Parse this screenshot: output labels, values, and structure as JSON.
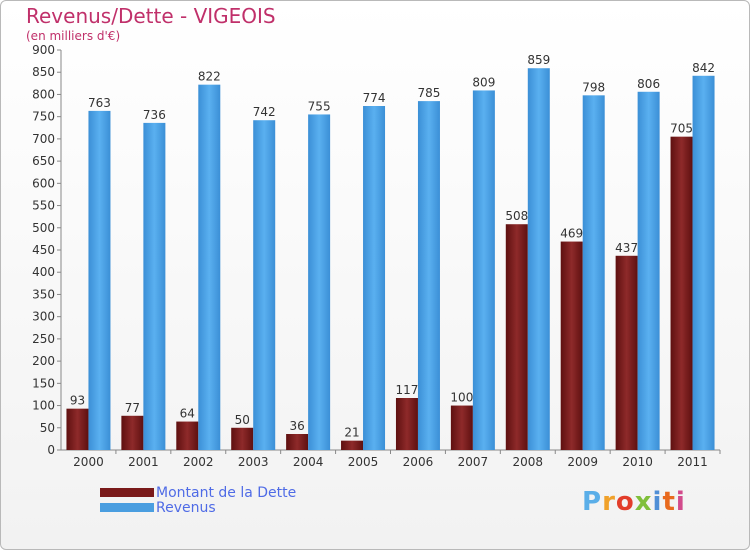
{
  "title": "Revenus/Dette - VIGEOIS",
  "subtitle": "(en milliers d'€)",
  "logo": {
    "text": "Proxiti",
    "letter_colors": [
      "#5aaee8",
      "#f0a12a",
      "#e23d2a",
      "#7fbf3a",
      "#4f8fd6",
      "#e86a1e",
      "#d24b8c"
    ]
  },
  "chart_data": {
    "type": "bar",
    "categories": [
      "2000",
      "2001",
      "2002",
      "2003",
      "2004",
      "2005",
      "2006",
      "2007",
      "2008",
      "2009",
      "2010",
      "2011"
    ],
    "series": [
      {
        "name": "Montant de la Dette",
        "color": "#7a1a1a",
        "values": [
          93,
          77,
          64,
          50,
          36,
          21,
          117,
          100,
          508,
          469,
          437,
          705
        ]
      },
      {
        "name": "Revenus",
        "color": "#4a9ee0",
        "values": [
          763,
          736,
          822,
          742,
          755,
          774,
          785,
          809,
          859,
          798,
          806,
          842
        ]
      }
    ],
    "ylim": [
      0,
      900
    ],
    "ytick_step": 50,
    "grid": false,
    "legend_position": "bottom-left"
  }
}
